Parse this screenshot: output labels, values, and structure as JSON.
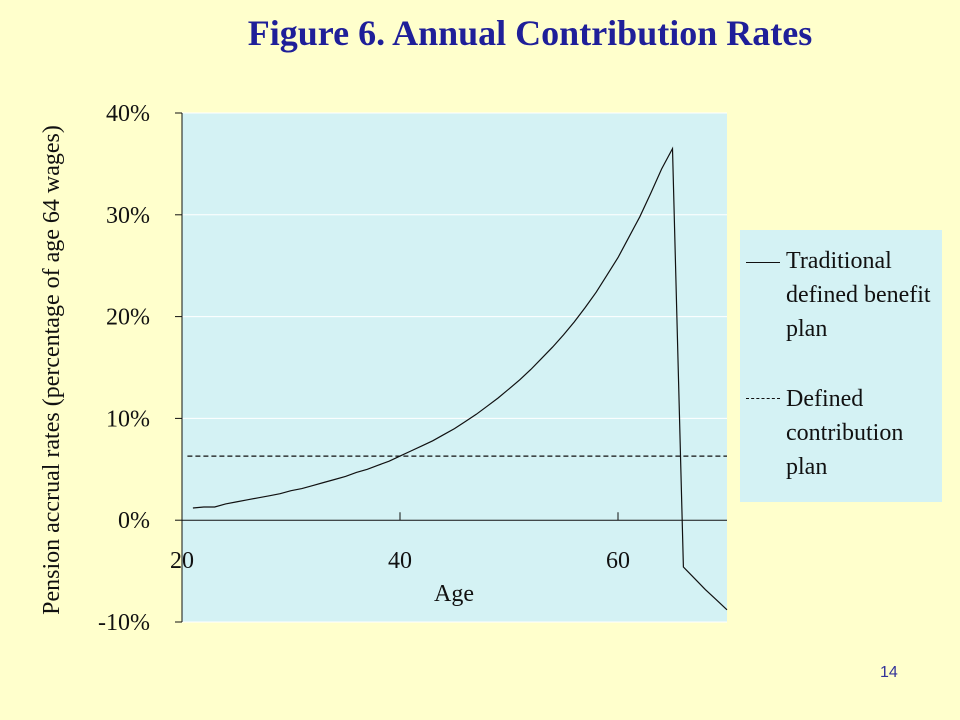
{
  "page": {
    "number": "14"
  },
  "colors": {
    "background": "#FFFFCC",
    "plot_area": "#D4F2F4",
    "title": "#1F1F99",
    "lines": "#111111",
    "page_number": "#333399"
  },
  "chart_data": {
    "type": "line",
    "title": "Figure 6.  Annual Contribution Rates",
    "xlabel": "Age",
    "ylabel": "Pension accrual rates (percentage of age 64 wages)",
    "xlim": [
      20,
      70
    ],
    "ylim": [
      -0.1,
      0.4
    ],
    "x_ticks": [
      20,
      40,
      60
    ],
    "x_tick_labels": [
      "20",
      "40",
      "60"
    ],
    "y_ticks": [
      -0.1,
      0.0,
      0.1,
      0.2,
      0.3,
      0.4
    ],
    "y_tick_labels": [
      "-10%",
      "0%",
      "10%",
      "20%",
      "30%",
      "40%"
    ],
    "grid": {
      "horizontal": true,
      "vertical": false
    },
    "legend": {
      "placement": "right",
      "entries": [
        "Traditional defined benefit plan",
        "Defined contribution plan"
      ]
    },
    "series": [
      {
        "name": "Traditional defined benefit plan",
        "style": "solid",
        "x": [
          21,
          22,
          23,
          24,
          25,
          26,
          27,
          28,
          29,
          30,
          31,
          32,
          33,
          34,
          35,
          36,
          37,
          38,
          39,
          40,
          41,
          42,
          43,
          44,
          45,
          46,
          47,
          48,
          49,
          50,
          51,
          52,
          53,
          54,
          55,
          56,
          57,
          58,
          59,
          60,
          61,
          62,
          63,
          64,
          65,
          66,
          67,
          68,
          69,
          70
        ],
        "y": [
          0.012,
          0.013,
          0.013,
          0.016,
          0.018,
          0.02,
          0.022,
          0.024,
          0.026,
          0.029,
          0.031,
          0.034,
          0.037,
          0.04,
          0.043,
          0.047,
          0.05,
          0.054,
          0.058,
          0.063,
          0.068,
          0.073,
          0.078,
          0.084,
          0.09,
          0.097,
          0.104,
          0.112,
          0.12,
          0.129,
          0.138,
          0.148,
          0.159,
          0.17,
          0.182,
          0.195,
          0.209,
          0.224,
          0.241,
          0.258,
          0.278,
          0.298,
          0.321,
          0.345,
          0.365,
          -0.046,
          -0.057,
          -0.068,
          -0.078,
          -0.088
        ]
      },
      {
        "name": "Defined contribution plan",
        "style": "dashed",
        "x": [
          20.5,
          70
        ],
        "y": [
          0.063,
          0.063
        ]
      }
    ]
  }
}
